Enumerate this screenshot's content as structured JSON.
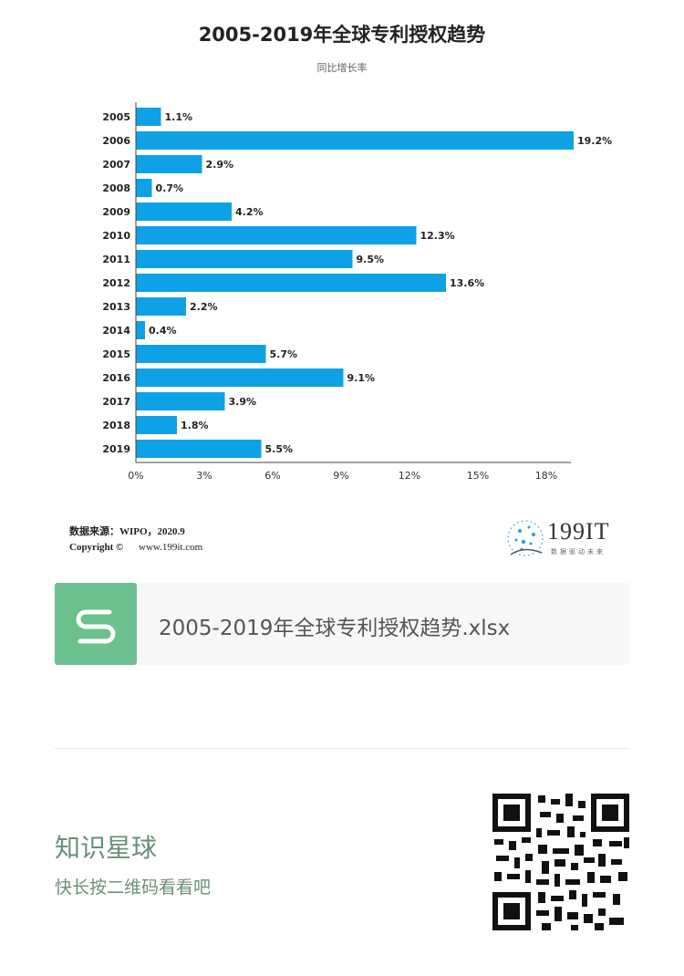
{
  "chart_data": {
    "type": "bar",
    "orientation": "horizontal",
    "title": "2005-2019年全球专利授权趋势",
    "subtitle": "同比增长率",
    "categories": [
      "2005",
      "2006",
      "2007",
      "2008",
      "2009",
      "2010",
      "2011",
      "2012",
      "2013",
      "2014",
      "2015",
      "2016",
      "2017",
      "2018",
      "2019"
    ],
    "values": [
      1.1,
      19.2,
      2.9,
      0.7,
      4.2,
      12.3,
      9.5,
      13.6,
      2.2,
      0.4,
      5.7,
      9.1,
      3.9,
      1.8,
      5.5
    ],
    "value_labels": [
      "1.1%",
      "19.2%",
      "2.9%",
      "0.7%",
      "4.2%",
      "12.3%",
      "9.5%",
      "13.6%",
      "2.2%",
      "0.4%",
      "5.7%",
      "9.1%",
      "3.9%",
      "1.8%",
      "5.5%"
    ],
    "xticks": [
      "0%",
      "3%",
      "6%",
      "9%",
      "12%",
      "15%",
      "18%"
    ],
    "xlim": [
      0,
      19
    ],
    "xlabel": "",
    "ylabel": "",
    "grid": false,
    "bar_color": "#0ea1e6"
  },
  "footer": {
    "source": "数据来源：WIPO，2020.9",
    "copyright_label": "Copyright ©",
    "site": "www.199it.com",
    "logo_text": "199IT",
    "logo_sub": "数据驱动未来"
  },
  "file": {
    "name": "2005-2019年全球专利授权趋势.xlsx",
    "icon": "spreadsheet-s-icon",
    "color": "#6cc08b"
  },
  "promo": {
    "title": "知识星球",
    "subtitle": "快长按二维码看看吧",
    "qr": "qr-code-icon"
  }
}
